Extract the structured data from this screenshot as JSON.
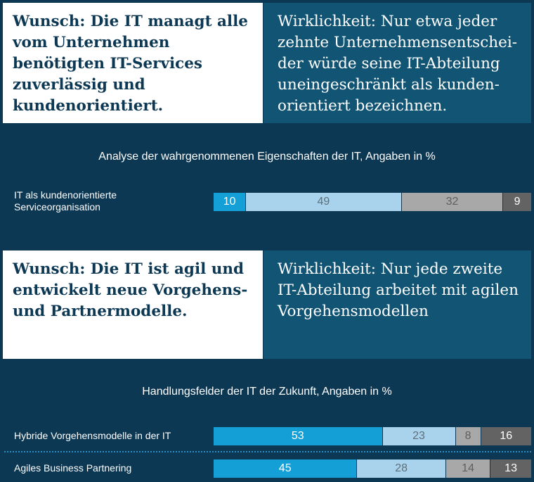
{
  "panels": [
    {
      "wish": "Wunsch: Die IT managt alle vom Unternehmen benötigten IT-Services zuverlässig und kundenorientiert.",
      "reality": "Wirklichkeit: Nur etwa jeder zehnte Unternehmensentschei-der würde seine IT-Abteilung uneingeschränkt als kunden-orientiert bezeichnen."
    },
    {
      "wish": "Wunsch: Die IT ist agil und entwickelt neue Vorgehens- und Partnermodelle.",
      "reality": "Wirklichkeit: Nur jede zweite IT-Abteilung arbeitet mit agilen Vorgehensmodellen"
    }
  ],
  "colors": {
    "background": "#0c3854",
    "reality_panel": "#115474",
    "segment_colors": [
      "#14a0d6",
      "#a9d3ec",
      "#a8a8a8",
      "#636363"
    ],
    "segment_text_colors": [
      "#ffffff",
      "#5e6f7b",
      "#5f5f5f",
      "#ffffff"
    ]
  },
  "chart_data": [
    {
      "type": "bar",
      "orientation": "horizontal",
      "stacked": true,
      "title": "Analyse der wahrgenommenen Eigenschaften der IT, Angaben in %",
      "categories": [
        "IT als kundenorientierte Serviceorganisation"
      ],
      "values": [
        [
          10,
          49,
          32,
          9
        ]
      ]
    },
    {
      "type": "bar",
      "orientation": "horizontal",
      "stacked": true,
      "title": "Handlungsfelder der IT der Zukunft, Angaben in %",
      "categories": [
        "Hybride Vorgehensmodelle in der IT",
        "Agiles Business Partnering"
      ],
      "values": [
        [
          53,
          23,
          8,
          16
        ],
        [
          45,
          28,
          14,
          13
        ]
      ]
    }
  ]
}
